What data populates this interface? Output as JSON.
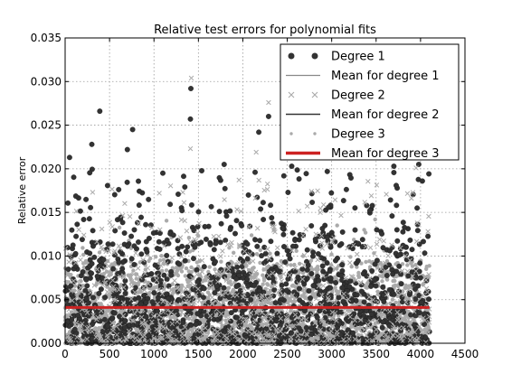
{
  "chart_data": {
    "type": "scatter",
    "title": "Relative test errors for polynomial fits",
    "xlabel": "",
    "ylabel": "Relative error",
    "xlim": [
      0,
      4500
    ],
    "ylim": [
      0,
      0.035
    ],
    "x_ticks": [
      "0",
      "500",
      "1000",
      "1500",
      "2000",
      "2500",
      "3000",
      "3500",
      "4000",
      "4500"
    ],
    "y_ticks": [
      "0.000",
      "0.005",
      "0.010",
      "0.015",
      "0.020",
      "0.025",
      "0.030",
      "0.035"
    ],
    "grid": true,
    "legend_position": "top-right",
    "series": [
      {
        "name": "Degree 1",
        "marker": "circle",
        "color": "#333333",
        "x_range": [
          0,
          4100
        ],
        "typical_range": [
          0.0,
          0.012
        ],
        "notable_points": [
          {
            "x": 50,
            "y": 0.0213
          },
          {
            "x": 300,
            "y": 0.0228
          },
          {
            "x": 390,
            "y": 0.0266
          },
          {
            "x": 700,
            "y": 0.0222
          },
          {
            "x": 760,
            "y": 0.0245
          },
          {
            "x": 1100,
            "y": 0.0195
          },
          {
            "x": 1415,
            "y": 0.0292
          },
          {
            "x": 1410,
            "y": 0.0257
          },
          {
            "x": 1790,
            "y": 0.0205
          },
          {
            "x": 2180,
            "y": 0.0242
          },
          {
            "x": 2290,
            "y": 0.026
          },
          {
            "x": 2550,
            "y": 0.0203
          },
          {
            "x": 2950,
            "y": 0.0197
          },
          {
            "x": 3700,
            "y": 0.0203
          },
          {
            "x": 3980,
            "y": 0.0205
          },
          {
            "x": 4020,
            "y": 0.0186
          }
        ]
      },
      {
        "name": "Mean for degree 1",
        "marker": "line",
        "color": "#888888",
        "value": 0.0041
      },
      {
        "name": "Degree 2",
        "marker": "x",
        "color": "#aaaaaa",
        "x_range": [
          0,
          4100
        ],
        "typical_range": [
          0.0,
          0.011
        ],
        "notable_points": [
          {
            "x": 1420,
            "y": 0.0304
          },
          {
            "x": 2290,
            "y": 0.0276
          },
          {
            "x": 2150,
            "y": 0.0219
          },
          {
            "x": 1410,
            "y": 0.0223
          },
          {
            "x": 310,
            "y": 0.0173
          },
          {
            "x": 1060,
            "y": 0.0172
          },
          {
            "x": 3950,
            "y": 0.0201
          }
        ]
      },
      {
        "name": "Mean for degree 2",
        "marker": "line",
        "color": "#333333",
        "value": 0.0041
      },
      {
        "name": "Degree 3",
        "marker": "point",
        "color": "#aaaaaa",
        "x_range": [
          0,
          4100
        ],
        "typical_range": [
          0.0,
          0.01
        ]
      },
      {
        "name": "Mean for degree 3",
        "marker": "line",
        "color": "#cc2222",
        "value": 0.0041
      }
    ]
  }
}
